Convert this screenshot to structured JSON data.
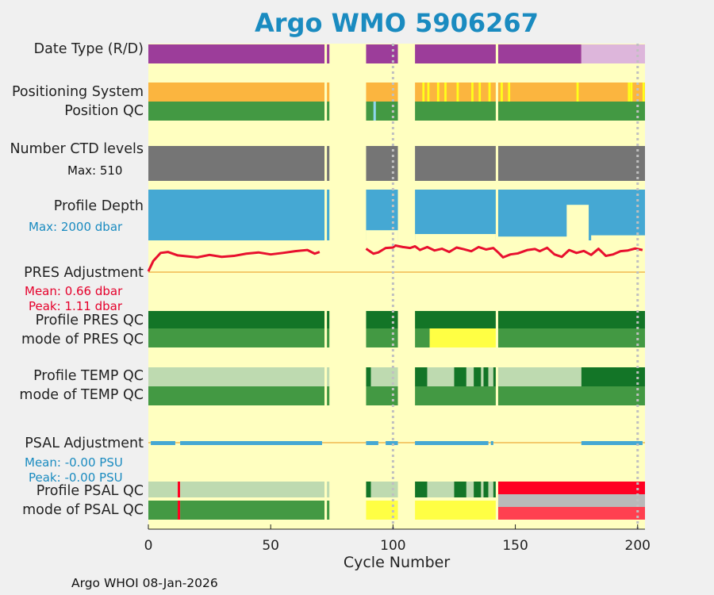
{
  "title": "Argo WMO 5906267",
  "row_labels": {
    "date_type": "Date Type (R/D)",
    "positioning_system": "Positioning System",
    "position_qc": "Position QC",
    "number_ctd_levels": "Number CTD levels",
    "profile_depth": "Profile Depth",
    "pres_adjustment": "PRES Adjustment",
    "profile_pres_qc": "Profile PRES QC",
    "mode_pres_qc": "mode of PRES QC",
    "profile_temp_qc": "Profile TEMP QC",
    "mode_temp_qc": "mode of TEMP QC",
    "psal_adjustment": "PSAL Adjustment",
    "profile_psal_qc": "Profile PSAL QC",
    "mode_psal_qc": "mode of PSAL QC"
  },
  "notes": {
    "max_ctd": "Max: 510",
    "max_depth": "Max: 2000 dbar",
    "pres_mean": "Mean: 0.66 dbar",
    "pres_peak": "Peak: 1.11 dbar",
    "psal_mean": "Mean: -0.00 PSU",
    "psal_peak": "Peak: -0.00 PSU"
  },
  "footer": "Argo WHOI 08-Jan-2026",
  "colors": {
    "background": "#ffffc0",
    "delayed": "#9c3d9a",
    "realtime": "#ddb6db",
    "positioning": "#fbb53f",
    "positioning_alt": "#ffff1a",
    "qc_good": "#439943",
    "qc_dark": "#137527",
    "qc_light": "#bedab0",
    "qc_yellow": "#ffff44",
    "qc_bad": "#ff0022",
    "qc_grey": "#b9b9b9",
    "qc_pink": "#ff4050",
    "ctd_grey": "#757575",
    "depth_blue": "#45a8d3",
    "pres_red": "#e8102e",
    "zero_line": "#f0b850",
    "title_blue": "#1a8bc0"
  },
  "chart_data": {
    "type": "heatmap",
    "xlabel": "Cycle Number",
    "xlim": [
      0,
      203
    ],
    "xticks": [
      0,
      50,
      100,
      150,
      200
    ],
    "vertical_markers": [
      100,
      200
    ],
    "data_gaps": [
      [
        72,
        73
      ],
      [
        74,
        89
      ],
      [
        102,
        109
      ],
      [
        142,
        143
      ]
    ],
    "date_type": [
      {
        "from": 0,
        "to": 177,
        "value": "D"
      },
      {
        "from": 177,
        "to": 203,
        "value": "R"
      }
    ],
    "positioning_alt_cycles": [
      112,
      114,
      118,
      121,
      126,
      132,
      135,
      139,
      144,
      147,
      175,
      196,
      197,
      202
    ],
    "position_qc_other_cycles": [
      92
    ],
    "ctd_levels_max": 510,
    "depth_max_dbar": 2000,
    "depth_shallow": [
      {
        "from": 89,
        "to": 102,
        "depth": 1600
      },
      {
        "from": 109,
        "to": 142,
        "depth": 1750
      },
      {
        "from": 142,
        "to": 174,
        "depth": 1850
      },
      {
        "from": 171,
        "to": 180,
        "depth": 600
      },
      {
        "from": 181,
        "to": 203,
        "depth": 1800
      }
    ],
    "pres_adjustment_dbar": [
      {
        "cycle": 0,
        "value": 0.03
      },
      {
        "cycle": 2,
        "value": 0.45
      },
      {
        "cycle": 5,
        "value": 0.78
      },
      {
        "cycle": 8,
        "value": 0.82
      },
      {
        "cycle": 12,
        "value": 0.68
      },
      {
        "cycle": 16,
        "value": 0.64
      },
      {
        "cycle": 20,
        "value": 0.6
      },
      {
        "cycle": 25,
        "value": 0.7
      },
      {
        "cycle": 30,
        "value": 0.62
      },
      {
        "cycle": 35,
        "value": 0.66
      },
      {
        "cycle": 40,
        "value": 0.75
      },
      {
        "cycle": 45,
        "value": 0.8
      },
      {
        "cycle": 50,
        "value": 0.72
      },
      {
        "cycle": 55,
        "value": 0.78
      },
      {
        "cycle": 60,
        "value": 0.85
      },
      {
        "cycle": 65,
        "value": 0.9
      },
      {
        "cycle": 68,
        "value": 0.75
      },
      {
        "cycle": 70,
        "value": 0.82
      },
      {
        "cycle": 89,
        "value": 0.95
      },
      {
        "cycle": 92,
        "value": 0.75
      },
      {
        "cycle": 94,
        "value": 0.8
      },
      {
        "cycle": 97,
        "value": 0.98
      },
      {
        "cycle": 100,
        "value": 1.0
      },
      {
        "cycle": 101,
        "value": 1.08
      },
      {
        "cycle": 104,
        "value": 1.02
      },
      {
        "cycle": 107,
        "value": 0.98
      },
      {
        "cycle": 109,
        "value": 1.05
      },
      {
        "cycle": 111,
        "value": 0.9
      },
      {
        "cycle": 114,
        "value": 1.02
      },
      {
        "cycle": 117,
        "value": 0.88
      },
      {
        "cycle": 120,
        "value": 0.95
      },
      {
        "cycle": 123,
        "value": 0.82
      },
      {
        "cycle": 126,
        "value": 1.0
      },
      {
        "cycle": 129,
        "value": 0.93
      },
      {
        "cycle": 132,
        "value": 0.85
      },
      {
        "cycle": 135,
        "value": 1.02
      },
      {
        "cycle": 138,
        "value": 0.92
      },
      {
        "cycle": 141,
        "value": 0.98
      },
      {
        "cycle": 143,
        "value": 0.8
      },
      {
        "cycle": 145,
        "value": 0.6
      },
      {
        "cycle": 148,
        "value": 0.72
      },
      {
        "cycle": 151,
        "value": 0.76
      },
      {
        "cycle": 155,
        "value": 0.9
      },
      {
        "cycle": 158,
        "value": 0.94
      },
      {
        "cycle": 160,
        "value": 0.85
      },
      {
        "cycle": 163,
        "value": 0.99
      },
      {
        "cycle": 166,
        "value": 0.72
      },
      {
        "cycle": 169,
        "value": 0.62
      },
      {
        "cycle": 172,
        "value": 0.9
      },
      {
        "cycle": 175,
        "value": 0.78
      },
      {
        "cycle": 178,
        "value": 0.86
      },
      {
        "cycle": 181,
        "value": 0.7
      },
      {
        "cycle": 184,
        "value": 0.95
      },
      {
        "cycle": 187,
        "value": 0.66
      },
      {
        "cycle": 190,
        "value": 0.72
      },
      {
        "cycle": 193,
        "value": 0.85
      },
      {
        "cycle": 196,
        "value": 0.88
      },
      {
        "cycle": 199,
        "value": 0.96
      },
      {
        "cycle": 202,
        "value": 0.9
      }
    ],
    "profile_pres_qc": "A",
    "mode_pres_qc": [
      {
        "from": 0,
        "to": 115,
        "value": "good"
      },
      {
        "from": 115,
        "to": 142,
        "value": "yellow"
      },
      {
        "from": 142,
        "to": 203,
        "value": "good"
      }
    ],
    "profile_temp_qc": [
      {
        "from": 0,
        "to": 89,
        "value": "light"
      },
      {
        "from": 89,
        "to": 91,
        "value": "dark"
      },
      {
        "from": 91,
        "to": 102,
        "value": "light"
      },
      {
        "from": 109,
        "to": 114,
        "value": "dark"
      },
      {
        "from": 114,
        "to": 125,
        "value": "light"
      },
      {
        "from": 125,
        "to": 130,
        "value": "dark"
      },
      {
        "from": 130,
        "to": 133,
        "value": "light"
      },
      {
        "from": 133,
        "to": 136,
        "value": "dark"
      },
      {
        "from": 136,
        "to": 137,
        "value": "light"
      },
      {
        "from": 137,
        "to": 139,
        "value": "dark"
      },
      {
        "from": 139,
        "to": 141,
        "value": "light"
      },
      {
        "from": 141,
        "to": 142,
        "value": "dark"
      },
      {
        "from": 142,
        "to": 177,
        "value": "light"
      },
      {
        "from": 177,
        "to": 203,
        "value": "dark"
      }
    ],
    "mode_temp_qc": "good",
    "psal_adjustment_present": [
      [
        1,
        11
      ],
      [
        13,
        71
      ],
      [
        89,
        94
      ],
      [
        97,
        102
      ],
      [
        109,
        139
      ],
      [
        140,
        141
      ],
      [
        177,
        202
      ]
    ],
    "profile_psal_qc": [
      {
        "from": 0,
        "to": 12,
        "value": "light"
      },
      {
        "from": 12,
        "to": 13,
        "value": "bad"
      },
      {
        "from": 13,
        "to": 89,
        "value": "light"
      },
      {
        "from": 89,
        "to": 91,
        "value": "dark"
      },
      {
        "from": 91,
        "to": 102,
        "value": "light"
      },
      {
        "from": 109,
        "to": 114,
        "value": "dark"
      },
      {
        "from": 114,
        "to": 125,
        "value": "light"
      },
      {
        "from": 125,
        "to": 130,
        "value": "dark"
      },
      {
        "from": 130,
        "to": 133,
        "value": "light"
      },
      {
        "from": 133,
        "to": 136,
        "value": "dark"
      },
      {
        "from": 136,
        "to": 137,
        "value": "light"
      },
      {
        "from": 137,
        "to": 139,
        "value": "dark"
      },
      {
        "from": 139,
        "to": 141,
        "value": "light"
      },
      {
        "from": 141,
        "to": 143,
        "value": "dark"
      },
      {
        "from": 143,
        "to": 203,
        "value": "bad"
      }
    ],
    "mode_psal_qc": [
      {
        "from": 0,
        "to": 12,
        "value": "good"
      },
      {
        "from": 12,
        "to": 13,
        "value": "bad"
      },
      {
        "from": 13,
        "to": 89,
        "value": "good"
      },
      {
        "from": 89,
        "to": 102,
        "value": "yellow"
      },
      {
        "from": 109,
        "to": 142,
        "value": "yellow"
      },
      {
        "from": 142,
        "to": 143,
        "value": "grey"
      },
      {
        "from": 143,
        "to": 203,
        "value": "pink"
      }
    ]
  }
}
